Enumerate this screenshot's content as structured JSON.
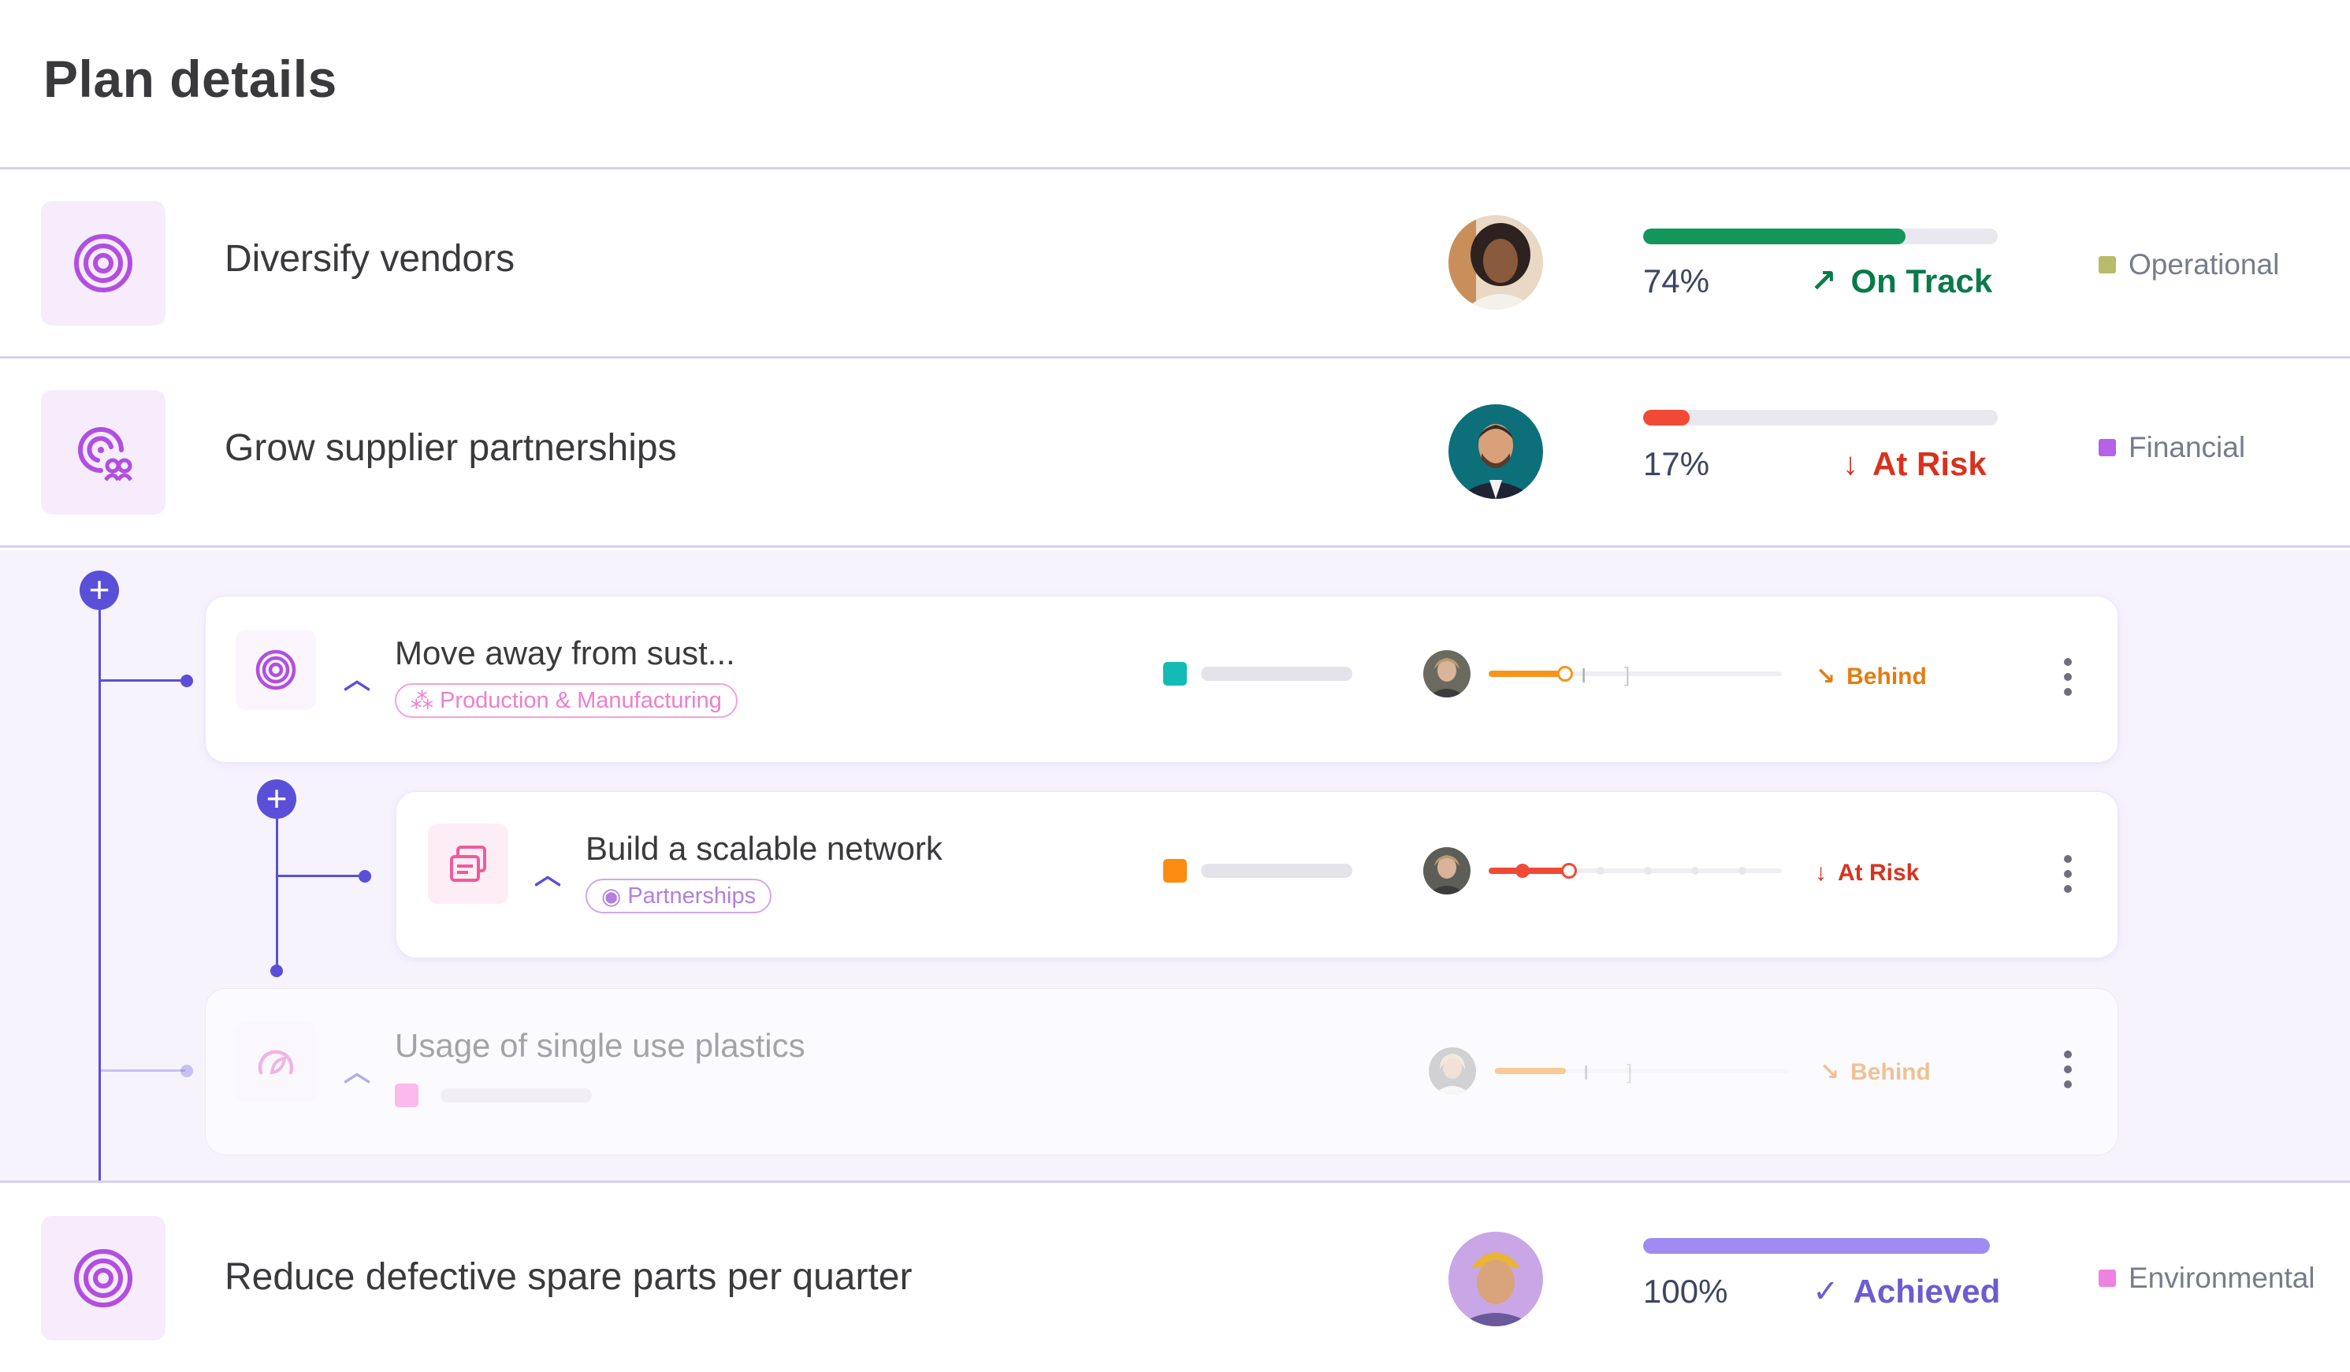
{
  "page_title": "Plan details",
  "goals": [
    {
      "title": "Diversify vendors",
      "icon": "target-icon",
      "progress_label": "74%",
      "progress": 0.74,
      "progress_color": "#12965a",
      "status_glyph": "↗",
      "status": "On Track",
      "status_color": "#0a7a4a",
      "category": "Operational",
      "category_color": "#b8bc6a"
    },
    {
      "title": "Grow supplier partnerships",
      "icon": "target-partners-icon",
      "progress_label": "17%",
      "progress": 0.17,
      "progress_color": "#f04a36",
      "status_glyph": "↓",
      "status": "At Risk",
      "status_color": "#d8321f",
      "category": "Financial",
      "category_color": "#b562e8"
    },
    {
      "title": "Reduce defective spare parts per quarter",
      "icon": "target-icon",
      "progress_label": "100%",
      "progress": 1.0,
      "progress_color": "#9f8cf2",
      "status_glyph": "✓",
      "status": "Achieved",
      "status_color": "#6d5bd0",
      "category": "Environmental",
      "category_color": "#ee82e0"
    }
  ],
  "sub_items": [
    {
      "title": "Move away from sust...",
      "tag": "Production & Manufacturing",
      "tag_color": "#f08dd2",
      "color_square": "#12bcb4",
      "status_glyph": "↘",
      "status": "Behind",
      "status_color": "#f08a16",
      "slider_color": "#f6951b"
    },
    {
      "title": "Build a scalable network",
      "tag": "Partnerships",
      "tag_color": "#c69ae8",
      "color_square": "#fb8c11",
      "status_glyph": "↓",
      "status": "At Risk",
      "status_color": "#d8321f",
      "slider_color": "#f04a36"
    },
    {
      "title": "Usage of single use plastics",
      "tag": "",
      "color_square": "#fb6ad8",
      "status_glyph": "↘",
      "status": "Behind",
      "status_color": "#f08a16",
      "slider_color": "#f6951b"
    }
  ]
}
